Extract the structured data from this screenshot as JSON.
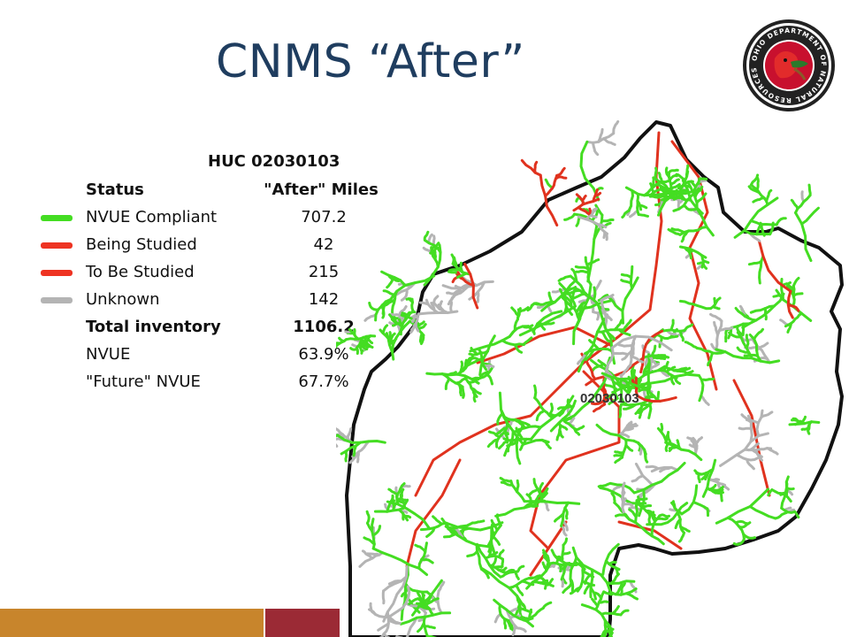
{
  "slide": {
    "title": "CNMS “After”",
    "logo_text": "OHIO DEPARTMENT OF NATURAL RESOURCES",
    "map_label": "02030103"
  },
  "table": {
    "huc": "HUC 02030103",
    "header": {
      "status": "Status",
      "miles": "\"After\" Miles"
    },
    "rows": [
      {
        "label": "NVUE Compliant",
        "value": "707.2",
        "color": "#44dd22"
      },
      {
        "label": "Being Studied",
        "value": "42",
        "color": "#ee3322"
      },
      {
        "label": "To Be Studied",
        "value": "215",
        "color": "#ee3322"
      },
      {
        "label": "Unknown",
        "value": "142",
        "color": "#b4b4b4"
      }
    ],
    "total": {
      "label": "Total inventory",
      "value": "1106.2"
    },
    "nvue": {
      "label": "NVUE",
      "value": "63.9%"
    },
    "future": {
      "label": "\"Future\" NVUE",
      "value": "67.7%"
    }
  },
  "colors": {
    "title": "#1f3d5f",
    "compliant": "#44dd22",
    "studied": "#e0321e",
    "unknown": "#b4b4b4",
    "bar_orange": "#c8852c",
    "bar_red": "#9b2a35"
  }
}
